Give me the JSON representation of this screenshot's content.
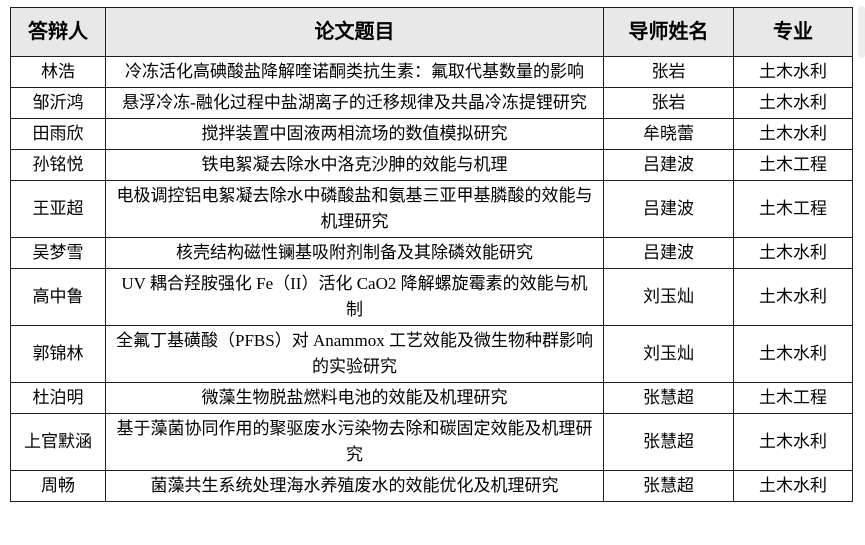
{
  "colors": {
    "header_bg": "#e8e8e8",
    "border": "#1f1f1f",
    "text": "#000000",
    "scrollbar_thumb": "#ececec"
  },
  "table": {
    "columns": [
      {
        "key": "name",
        "label": "答辩人"
      },
      {
        "key": "title",
        "label": "论文题目"
      },
      {
        "key": "advisor",
        "label": "导师姓名"
      },
      {
        "key": "major",
        "label": "专业"
      }
    ],
    "rows": [
      {
        "name": "林浩",
        "title": "冷冻活化高碘酸盐降解喹诺酮类抗生素：氟取代基数量的影响",
        "advisor": "张岩",
        "major": "土木水利"
      },
      {
        "name": "邹沂鸿",
        "title": "悬浮冷冻-融化过程中盐湖离子的迁移规律及共晶冷冻提锂研究",
        "advisor": "张岩",
        "major": "土木水利"
      },
      {
        "name": "田雨欣",
        "title": "搅拌装置中固液两相流场的数值模拟研究",
        "advisor": "牟晓蕾",
        "major": "土木水利"
      },
      {
        "name": "孙铭悦",
        "title": "铁电絮凝去除水中洛克沙胂的效能与机理",
        "advisor": "吕建波",
        "major": "土木工程"
      },
      {
        "name": "王亚超",
        "title": "电极调控铝电絮凝去除水中磷酸盐和氨基三亚甲基膦酸的效能与机理研究",
        "advisor": "吕建波",
        "major": "土木工程"
      },
      {
        "name": "吴梦雪",
        "title": "核壳结构磁性镧基吸附剂制备及其除磷效能研究",
        "advisor": "吕建波",
        "major": "土木水利"
      },
      {
        "name": "高中鲁",
        "title": "UV 耦合羟胺强化 Fe（II）活化 CaO2 降解螺旋霉素的效能与机制",
        "advisor": "刘玉灿",
        "major": "土木水利"
      },
      {
        "name": "郭锦林",
        "title": "全氟丁基磺酸（PFBS）对 Anammox 工艺效能及微生物种群影响的实验研究",
        "advisor": "刘玉灿",
        "major": "土木水利"
      },
      {
        "name": "杜泊明",
        "title": "微藻生物脱盐燃料电池的效能及机理研究",
        "advisor": "张慧超",
        "major": "土木工程"
      },
      {
        "name": "上官默涵",
        "title": "基于藻菌协同作用的聚驱废水污染物去除和碳固定效能及机理研究",
        "advisor": "张慧超",
        "major": "土木水利"
      },
      {
        "name": "周畅",
        "title": "菌藻共生系统处理海水养殖废水的效能优化及机理研究",
        "advisor": "张慧超",
        "major": "土木水利"
      }
    ]
  }
}
